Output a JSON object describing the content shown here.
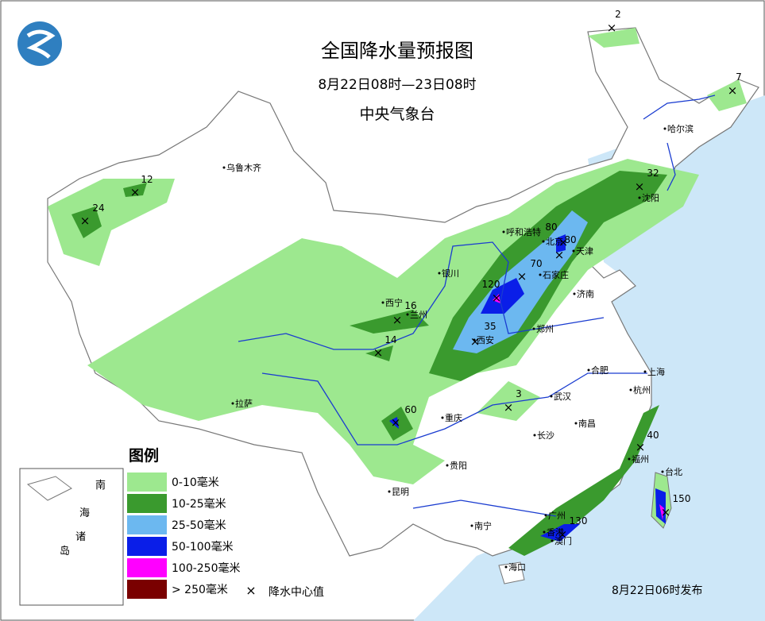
{
  "header": {
    "title": "全国降水量预报图",
    "period": "8月22日08时—23日08时",
    "agency": "中央气象台"
  },
  "legend": {
    "title": "图例",
    "items": [
      {
        "label": "0-10毫米",
        "color": "#9de88f"
      },
      {
        "label": "10-25毫米",
        "color": "#3a9a2e"
      },
      {
        "label": "25-50毫米",
        "color": "#6cb8f0"
      },
      {
        "label": "50-100毫米",
        "color": "#0a1ee8"
      },
      {
        "label": "100-250毫米",
        "color": "#ff00ff"
      },
      {
        "label": "> 250毫米",
        "color": "#7a0000"
      }
    ],
    "center_marker": "降水中心值"
  },
  "inset": {
    "labels": [
      "南",
      "海",
      "诸",
      "岛"
    ]
  },
  "cities": [
    "乌鲁木齐",
    "哈尔滨",
    "沈阳",
    "呼和浩特",
    "北京",
    "天津",
    "石家庄",
    "银川",
    "济南",
    "西宁",
    "兰州",
    "郑州",
    "西安",
    "合肥",
    "上海",
    "武汉",
    "杭州",
    "拉萨",
    "重庆",
    "南昌",
    "长沙",
    "贵阳",
    "福州",
    "台北",
    "昆明",
    "南宁",
    "广州",
    "香港",
    "澳门",
    "海口"
  ],
  "centers": [
    2,
    7,
    12,
    24,
    32,
    80,
    80,
    70,
    120,
    16,
    35,
    14,
    3,
    60,
    40,
    130,
    150
  ],
  "footer": {
    "issued": "8月22日06时发布"
  }
}
